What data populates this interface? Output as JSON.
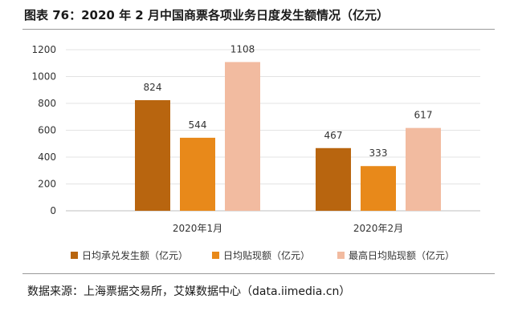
{
  "title": "图表 76：2020 年 2 月中国商票各项业务日度发生额情况（亿元）",
  "source": "数据来源：上海票据交易所，艾媒数据中心（data.iimedia.cn）",
  "chart_data": {
    "type": "bar",
    "title": "图表 76：2020 年 2 月中国商票各项业务日度发生额情况（亿元）",
    "categories": [
      "2020年1月",
      "2020年2月"
    ],
    "series": [
      {
        "name": "日均承兑发生额（亿元）",
        "values": [
          824,
          467
        ],
        "color": "#B8650F"
      },
      {
        "name": "日均贴现额（亿元）",
        "values": [
          544,
          333
        ],
        "color": "#E8891A"
      },
      {
        "name": "最高日均贴现额（亿元）",
        "values": [
          1108,
          617
        ],
        "color": "#F2BBA0"
      }
    ],
    "yticks": [
      0,
      200,
      400,
      600,
      800,
      1000,
      1200
    ],
    "ylim": [
      0,
      1200
    ],
    "grid": true,
    "legend": "bottom",
    "xlabel": "",
    "ylabel": ""
  }
}
